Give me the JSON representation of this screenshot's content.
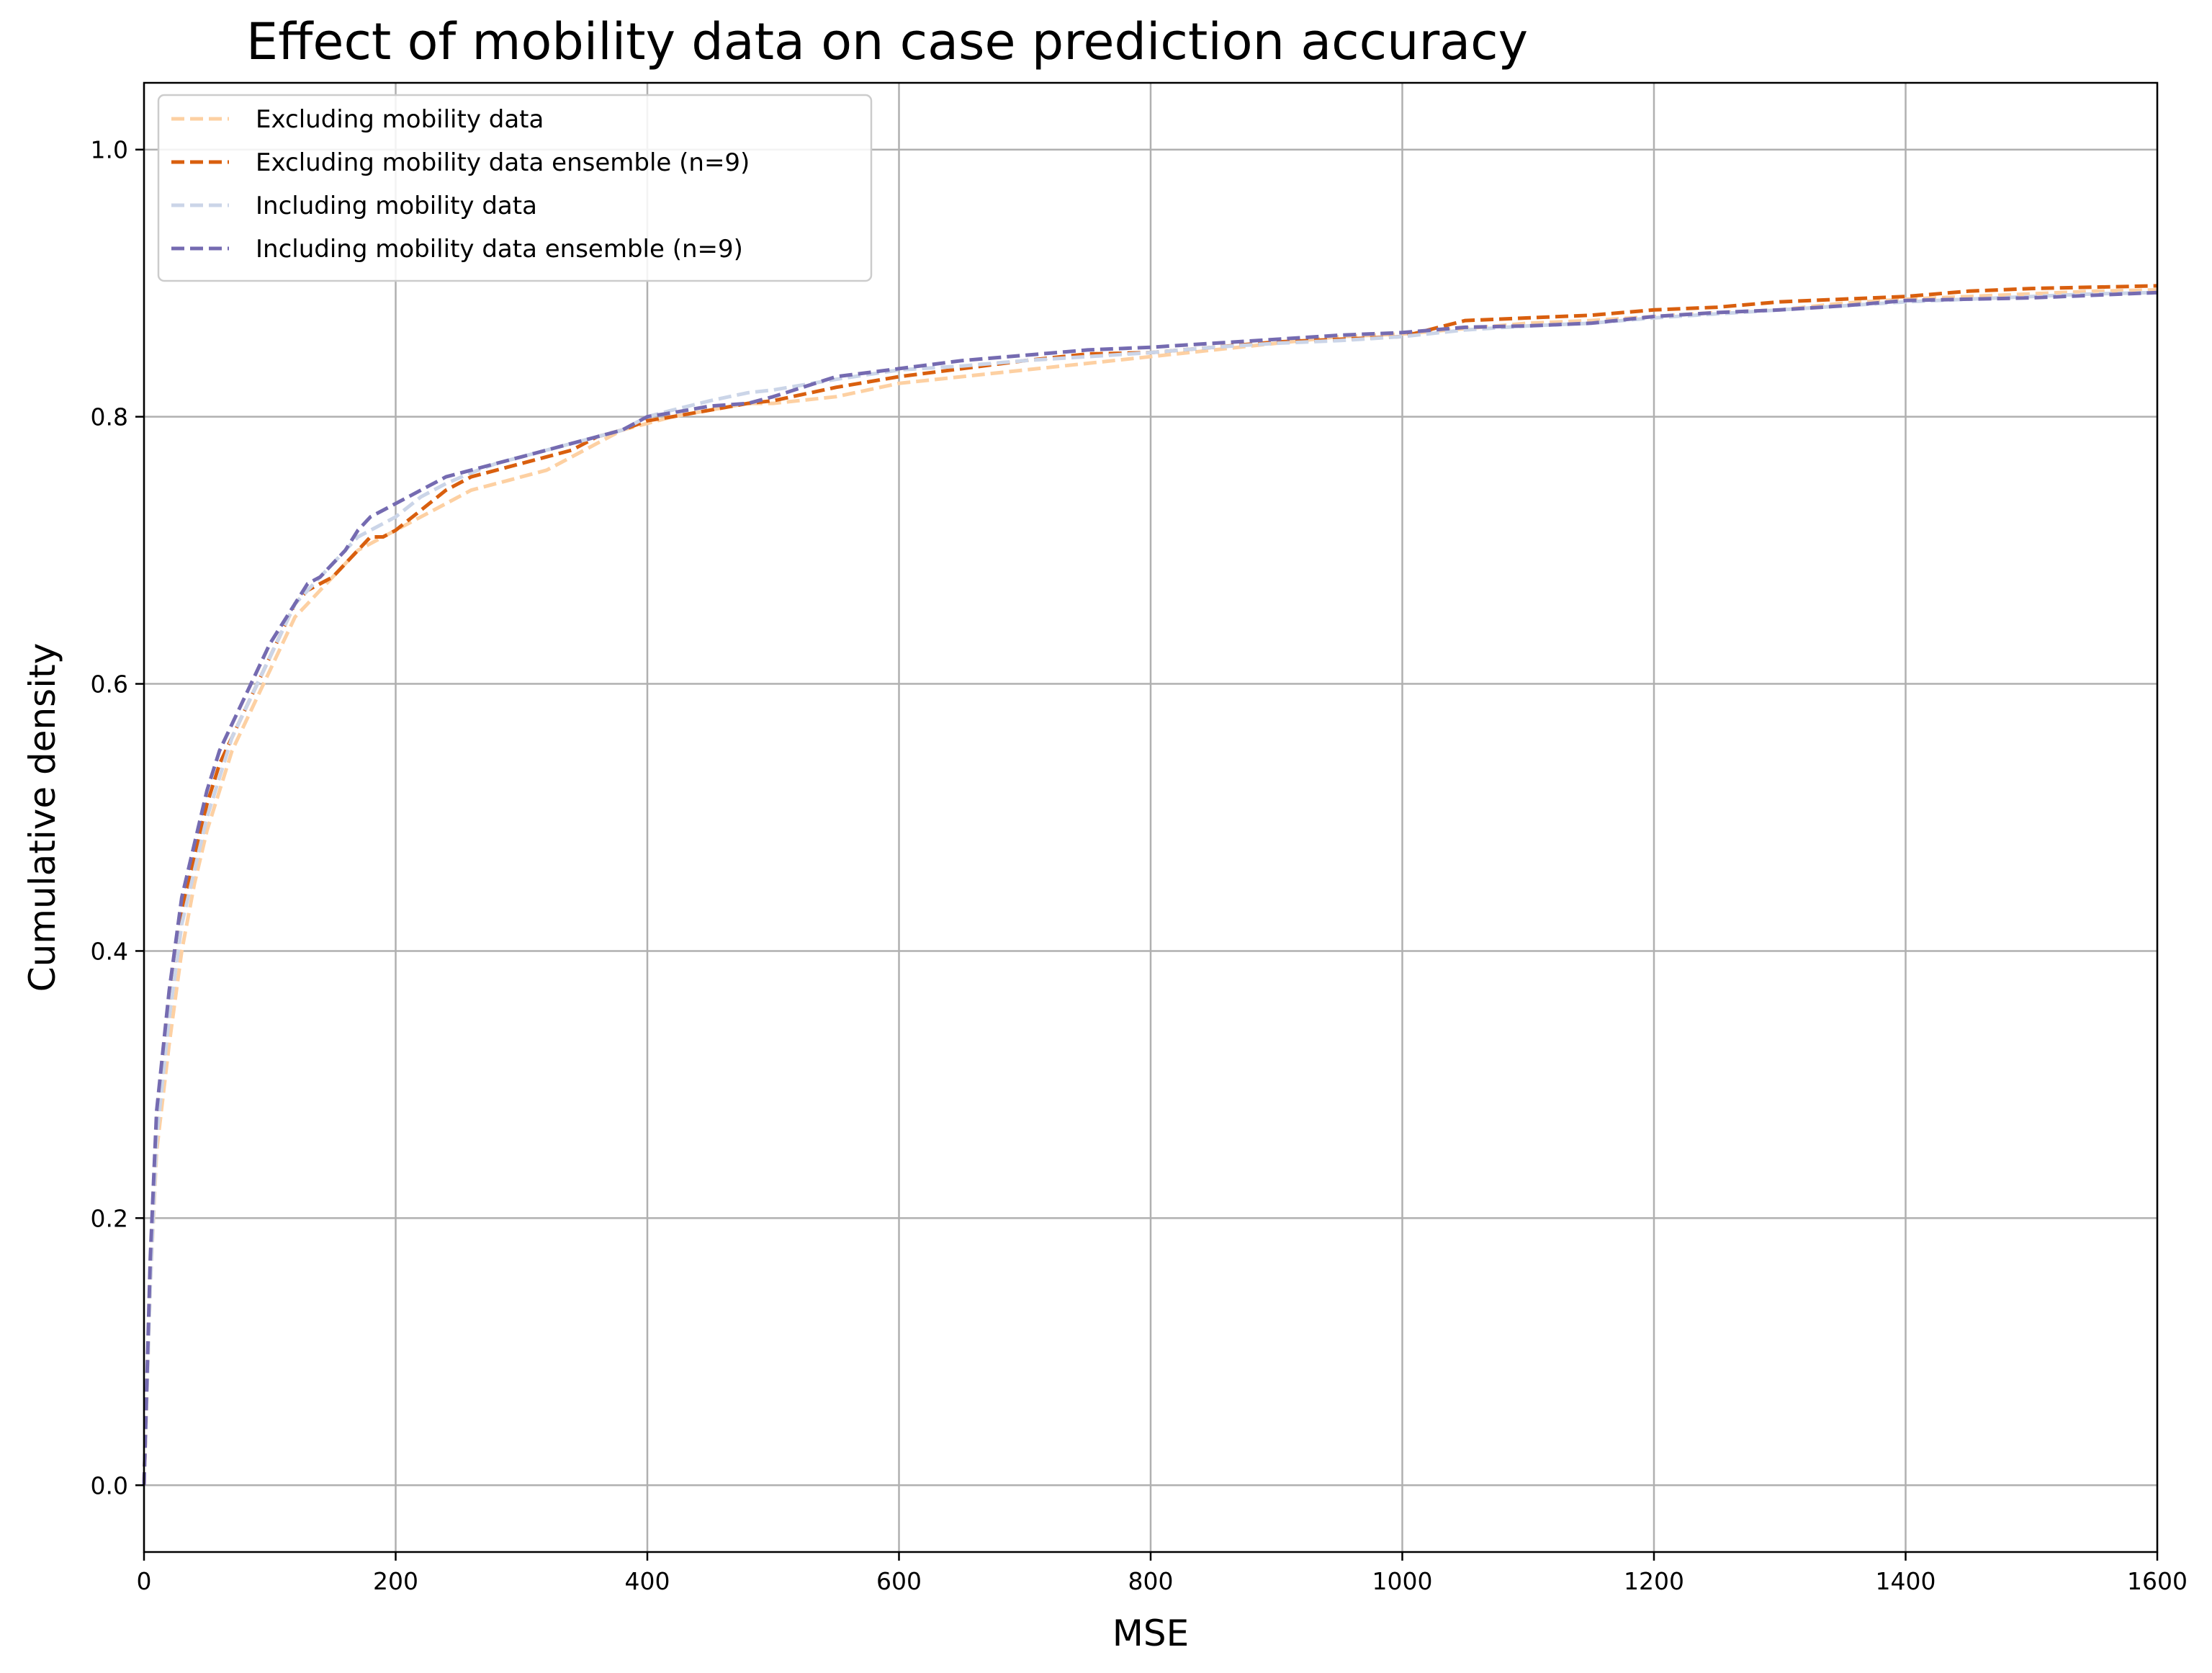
{
  "chart_data": {
    "type": "line",
    "title": "Effect of mobility data on case prediction accuracy",
    "xlabel": "MSE",
    "ylabel": "Cumulative density",
    "xlim": [
      0,
      1600
    ],
    "ylim": [
      -0.05,
      1.05
    ],
    "xticks": [
      0,
      200,
      400,
      600,
      800,
      1000,
      1200,
      1400,
      1600
    ],
    "yticks": [
      0.0,
      0.2,
      0.4,
      0.6,
      0.8,
      1.0
    ],
    "grid": true,
    "legend_position": "top-left",
    "line_style": "dashed",
    "series": [
      {
        "name": "Excluding mobility data",
        "color": "#fdd0a2",
        "x": [
          0,
          5,
          10,
          20,
          30,
          40,
          50,
          60,
          70,
          80,
          90,
          100,
          110,
          120,
          130,
          140,
          150,
          160,
          170,
          180,
          190,
          200,
          220,
          240,
          260,
          280,
          300,
          320,
          340,
          360,
          380,
          400,
          420,
          450,
          480,
          500,
          550,
          600,
          650,
          700,
          750,
          800,
          850,
          900,
          950,
          1000,
          1050,
          1100,
          1150,
          1200,
          1250,
          1300,
          1350,
          1400,
          1450,
          1500,
          1550,
          1600
        ],
        "y": [
          0.0,
          0.15,
          0.25,
          0.33,
          0.4,
          0.45,
          0.49,
          0.52,
          0.55,
          0.57,
          0.59,
          0.61,
          0.63,
          0.65,
          0.66,
          0.67,
          0.68,
          0.69,
          0.7,
          0.705,
          0.71,
          0.715,
          0.725,
          0.735,
          0.745,
          0.75,
          0.755,
          0.76,
          0.77,
          0.78,
          0.79,
          0.795,
          0.8,
          0.805,
          0.81,
          0.81,
          0.815,
          0.825,
          0.83,
          0.835,
          0.84,
          0.845,
          0.85,
          0.855,
          0.86,
          0.862,
          0.866,
          0.87,
          0.872,
          0.875,
          0.878,
          0.88,
          0.885,
          0.888,
          0.89,
          0.892,
          0.894,
          0.895
        ]
      },
      {
        "name": "Excluding mobility data ensemble (n=9)",
        "color": "#d95f0e",
        "x": [
          0,
          5,
          10,
          20,
          30,
          40,
          50,
          60,
          70,
          80,
          90,
          100,
          110,
          120,
          130,
          140,
          150,
          160,
          170,
          180,
          190,
          200,
          220,
          240,
          260,
          280,
          300,
          320,
          340,
          360,
          380,
          400,
          420,
          450,
          480,
          500,
          550,
          600,
          650,
          700,
          750,
          800,
          850,
          900,
          950,
          1000,
          1050,
          1100,
          1150,
          1200,
          1250,
          1300,
          1350,
          1400,
          1450,
          1500,
          1550,
          1600
        ],
        "y": [
          0.0,
          0.16,
          0.27,
          0.36,
          0.43,
          0.47,
          0.51,
          0.54,
          0.56,
          0.58,
          0.6,
          0.62,
          0.64,
          0.66,
          0.67,
          0.675,
          0.68,
          0.69,
          0.7,
          0.71,
          0.71,
          0.715,
          0.73,
          0.745,
          0.755,
          0.76,
          0.765,
          0.77,
          0.775,
          0.785,
          0.79,
          0.797,
          0.8,
          0.805,
          0.81,
          0.812,
          0.822,
          0.83,
          0.836,
          0.842,
          0.847,
          0.848,
          0.852,
          0.856,
          0.858,
          0.86,
          0.872,
          0.874,
          0.876,
          0.88,
          0.882,
          0.886,
          0.888,
          0.89,
          0.894,
          0.896,
          0.897,
          0.898
        ]
      },
      {
        "name": "Including mobility data",
        "color": "#cbd5e8",
        "x": [
          0,
          5,
          10,
          20,
          30,
          40,
          50,
          60,
          70,
          80,
          90,
          100,
          110,
          120,
          130,
          140,
          150,
          160,
          170,
          180,
          190,
          200,
          220,
          240,
          260,
          280,
          300,
          320,
          340,
          360,
          380,
          400,
          420,
          450,
          480,
          500,
          550,
          600,
          650,
          700,
          750,
          800,
          850,
          900,
          950,
          1000,
          1050,
          1100,
          1150,
          1200,
          1250,
          1300,
          1350,
          1400,
          1450,
          1500,
          1550,
          1600
        ],
        "y": [
          0.0,
          0.15,
          0.26,
          0.35,
          0.42,
          0.46,
          0.5,
          0.53,
          0.56,
          0.58,
          0.6,
          0.62,
          0.64,
          0.66,
          0.67,
          0.68,
          0.69,
          0.7,
          0.71,
          0.715,
          0.72,
          0.725,
          0.74,
          0.75,
          0.758,
          0.765,
          0.77,
          0.775,
          0.78,
          0.785,
          0.79,
          0.8,
          0.805,
          0.812,
          0.818,
          0.82,
          0.828,
          0.835,
          0.838,
          0.842,
          0.845,
          0.848,
          0.852,
          0.855,
          0.857,
          0.86,
          0.865,
          0.868,
          0.87,
          0.874,
          0.877,
          0.88,
          0.883,
          0.886,
          0.888,
          0.89,
          0.892,
          0.893
        ]
      },
      {
        "name": "Including mobility data ensemble (n=9)",
        "color": "#756bb1",
        "x": [
          0,
          5,
          10,
          20,
          30,
          40,
          50,
          60,
          70,
          80,
          90,
          100,
          110,
          120,
          130,
          140,
          150,
          160,
          170,
          180,
          190,
          200,
          220,
          240,
          260,
          280,
          300,
          320,
          340,
          360,
          380,
          400,
          420,
          450,
          480,
          500,
          550,
          600,
          650,
          700,
          750,
          800,
          850,
          900,
          950,
          1000,
          1050,
          1100,
          1150,
          1200,
          1250,
          1300,
          1350,
          1400,
          1450,
          1500,
          1550,
          1600
        ],
        "y": [
          0.0,
          0.17,
          0.28,
          0.37,
          0.44,
          0.48,
          0.52,
          0.55,
          0.57,
          0.59,
          0.61,
          0.63,
          0.645,
          0.66,
          0.675,
          0.68,
          0.69,
          0.7,
          0.715,
          0.725,
          0.73,
          0.735,
          0.745,
          0.755,
          0.76,
          0.765,
          0.77,
          0.775,
          0.78,
          0.785,
          0.79,
          0.8,
          0.803,
          0.808,
          0.81,
          0.815,
          0.83,
          0.836,
          0.842,
          0.846,
          0.85,
          0.852,
          0.855,
          0.858,
          0.861,
          0.863,
          0.867,
          0.868,
          0.87,
          0.875,
          0.878,
          0.88,
          0.883,
          0.887,
          0.888,
          0.889,
          0.891,
          0.893
        ]
      }
    ]
  }
}
